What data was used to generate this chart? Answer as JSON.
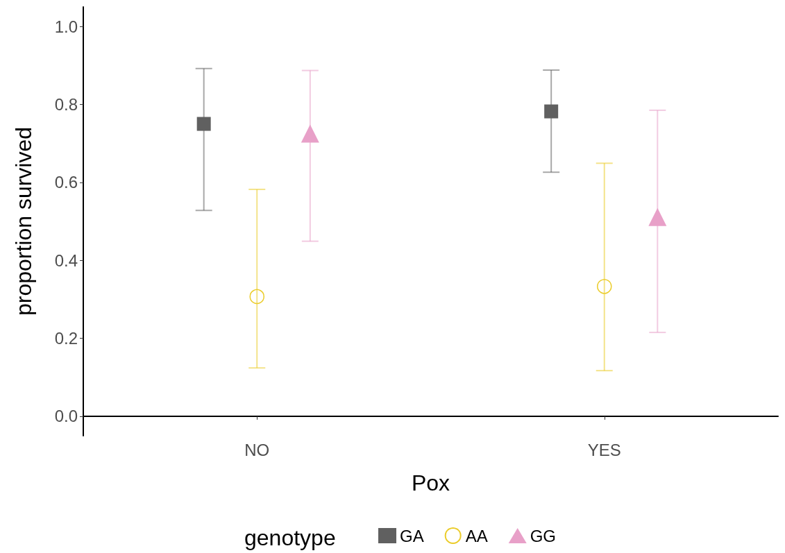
{
  "chart_data": {
    "type": "scatter",
    "xlabel": "Pox",
    "ylabel": "proportion survived",
    "legend_title": "genotype",
    "legend": "bottom",
    "grid": false,
    "categories": [
      "NO",
      "YES"
    ],
    "ylim": [
      -0.05,
      1.05
    ],
    "yticks": [
      {
        "value": 0,
        "label": "0.0"
      },
      0.2,
      0.4,
      0.6,
      0.8,
      {
        "value": 1,
        "label": "1.0"
      }
    ],
    "series": [
      {
        "name": "GA",
        "color": "#606060",
        "marker": "square",
        "values": [
          0.75,
          0.782
        ],
        "errors": [
          [
            0.528,
            0.892
          ],
          [
            0.626,
            0.888
          ]
        ]
      },
      {
        "name": "AA",
        "color": "#ebcc2a",
        "marker": "circle",
        "values": [
          0.307,
          0.333
        ],
        "errors": [
          [
            0.124,
            0.582
          ],
          [
            0.117,
            0.649
          ]
        ]
      },
      {
        "name": "GG",
        "color": "#e8a0c8",
        "marker": "triangle",
        "values": [
          0.718,
          0.504
        ],
        "errors": [
          [
            0.449,
            0.887
          ],
          [
            0.215,
            0.785
          ]
        ]
      }
    ]
  }
}
